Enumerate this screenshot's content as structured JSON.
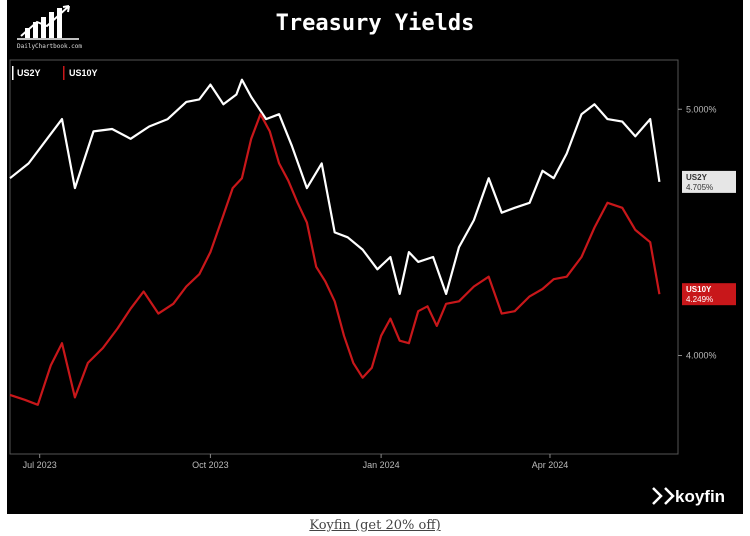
{
  "header": {
    "brand": "DailyChartbook.com"
  },
  "footer": {
    "logo_text": "koyfin",
    "link_text": "Koyfin (get 20% off)"
  },
  "colors": {
    "background": "#000000",
    "us2y": "#ffffff",
    "us10y": "#c8171a",
    "us2y_tag_bg": "#e6e6e6",
    "us10y_tag_bg": "#c8171a"
  },
  "chart_data": {
    "type": "line",
    "title": "Treasury Yields",
    "x_unit": "days since 2023-06-15",
    "x_ticks": [
      {
        "label": "Jul 2023",
        "value": 16
      },
      {
        "label": "Oct 2023",
        "value": 108
      },
      {
        "label": "Jan 2024",
        "value": 200
      },
      {
        "label": "Apr 2024",
        "value": 291
      }
    ],
    "xlim": [
      0,
      360
    ],
    "ylim": [
      3.6,
      5.2
    ],
    "y_ticks": [
      {
        "label": "5.000%",
        "value": 5.0
      },
      {
        "label": "4.000%",
        "value": 4.0
      }
    ],
    "grid": false,
    "legend": "top-left",
    "series": [
      {
        "name": "US2Y",
        "last_label": "US2Y",
        "last_value_label": "4.705%",
        "x": [
          0,
          10,
          20,
          28,
          35,
          45,
          55,
          65,
          75,
          85,
          95,
          102,
          108,
          115,
          122,
          125,
          130,
          138,
          145,
          152,
          160,
          168,
          175,
          182,
          190,
          198,
          205,
          210,
          215,
          220,
          228,
          235,
          242,
          250,
          258,
          265,
          272,
          280,
          287,
          293,
          300,
          308,
          315,
          322,
          330,
          337,
          345,
          350
        ],
        "values": [
          4.72,
          4.78,
          4.88,
          4.96,
          4.68,
          4.91,
          4.92,
          4.88,
          4.93,
          4.96,
          5.03,
          5.04,
          5.1,
          5.02,
          5.06,
          5.12,
          5.05,
          4.96,
          4.98,
          4.85,
          4.68,
          4.78,
          4.5,
          4.48,
          4.43,
          4.35,
          4.4,
          4.25,
          4.42,
          4.38,
          4.4,
          4.25,
          4.44,
          4.55,
          4.72,
          4.58,
          4.6,
          4.62,
          4.75,
          4.72,
          4.82,
          4.98,
          5.02,
          4.96,
          4.95,
          4.89,
          4.96,
          4.705
        ]
      },
      {
        "name": "US10Y",
        "last_label": "US10Y",
        "last_value_label": "4.249%",
        "x": [
          0,
          8,
          15,
          22,
          28,
          35,
          42,
          50,
          58,
          65,
          72,
          80,
          88,
          95,
          102,
          108,
          115,
          120,
          125,
          130,
          135,
          140,
          145,
          150,
          155,
          160,
          165,
          170,
          175,
          180,
          185,
          190,
          195,
          200,
          205,
          210,
          215,
          220,
          225,
          230,
          235,
          242,
          250,
          258,
          265,
          272,
          280,
          287,
          293,
          300,
          308,
          315,
          322,
          330,
          337,
          345,
          350
        ],
        "values": [
          3.84,
          3.82,
          3.8,
          3.96,
          4.05,
          3.83,
          3.97,
          4.03,
          4.11,
          4.19,
          4.26,
          4.17,
          4.21,
          4.28,
          4.33,
          4.42,
          4.57,
          4.68,
          4.72,
          4.88,
          4.98,
          4.91,
          4.78,
          4.71,
          4.62,
          4.54,
          4.36,
          4.3,
          4.22,
          4.08,
          3.97,
          3.91,
          3.95,
          4.08,
          4.15,
          4.06,
          4.05,
          4.18,
          4.2,
          4.12,
          4.21,
          4.22,
          4.28,
          4.32,
          4.17,
          4.18,
          4.24,
          4.27,
          4.31,
          4.32,
          4.4,
          4.52,
          4.62,
          4.6,
          4.51,
          4.46,
          4.249
        ]
      }
    ]
  }
}
